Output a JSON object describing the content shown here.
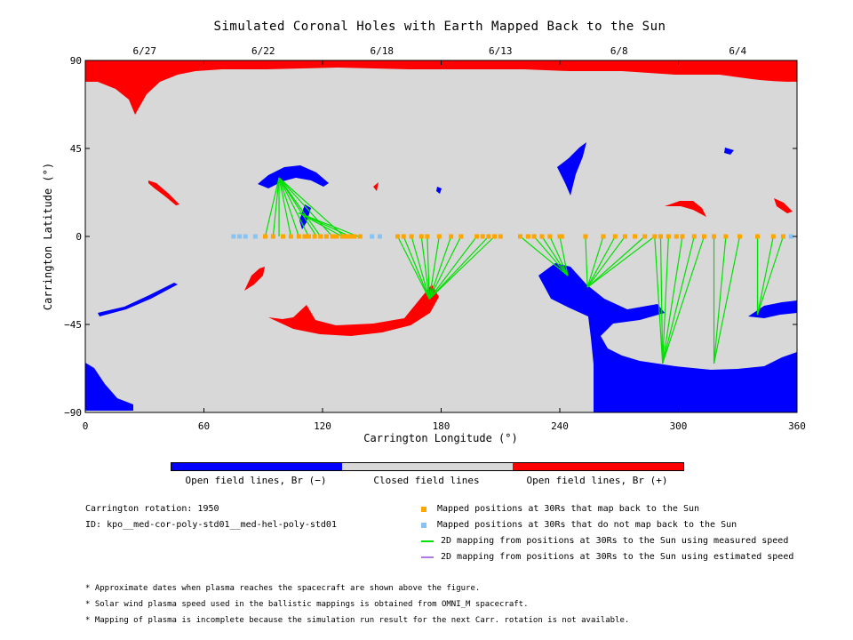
{
  "title": "Simulated Coronal Holes with Earth Mapped Back to the Sun",
  "chart_data": {
    "type": "scatter",
    "title": "Simulated Coronal Holes with Earth Mapped Back to the Sun",
    "xlabel": "Carrington Longitude (°)",
    "ylabel": "Carrington Latitude (°)",
    "xlim": [
      0,
      360
    ],
    "ylim": [
      -90,
      90
    ],
    "x_ticks": [
      "0",
      "60",
      "120",
      "180",
      "240",
      "300",
      "360"
    ],
    "y_ticks": [
      "90",
      "45",
      "0",
      "−45",
      "−90"
    ],
    "top_axis_dates": [
      {
        "label": "6/27",
        "lon": 30
      },
      {
        "label": "6/22",
        "lon": 90
      },
      {
        "label": "6/18",
        "lon": 150
      },
      {
        "label": "6/13",
        "lon": 210
      },
      {
        "label": "6/8",
        "lon": 270
      },
      {
        "label": "6/4",
        "lon": 330
      }
    ],
    "colors": {
      "closed": "#d8d8d8",
      "open_negative": "#0000ff",
      "open_positive": "#ff0000",
      "mapped": "#ffa500",
      "not_mapped": "#87c4f5",
      "measured_line": "#00e000",
      "estimated_line": "#b07ae0"
    },
    "unmapped_points_lon": [
      75,
      78,
      81,
      86,
      145,
      149,
      357
    ],
    "mapped_points_lon": [
      91,
      95,
      100,
      104,
      108,
      111,
      113,
      116,
      119,
      122,
      125,
      127,
      130,
      132,
      134,
      136,
      139,
      158,
      161,
      165,
      170,
      173,
      179,
      185,
      190,
      198,
      201,
      204,
      207,
      210,
      220,
      224,
      227,
      231,
      235,
      240,
      241,
      253,
      262,
      268,
      273,
      278,
      283,
      288,
      291,
      295,
      299,
      302,
      308,
      313,
      318,
      324,
      331,
      340,
      348,
      353
    ],
    "mapping_lines": [
      {
        "sun": [
          98,
          30
        ],
        "targets": [
          91,
          95,
          98,
          104,
          108,
          113,
          117,
          119,
          125,
          131
        ]
      },
      {
        "sun": [
          108,
          12
        ],
        "targets": [
          130,
          134,
          138
        ]
      },
      {
        "sun": [
          174,
          -32
        ],
        "targets": [
          158,
          161,
          165,
          170,
          173,
          179,
          185,
          190,
          198,
          204,
          207
        ]
      },
      {
        "sun": [
          244,
          -20
        ],
        "targets": [
          220,
          227,
          231,
          235,
          240
        ]
      },
      {
        "sun": [
          254,
          -26
        ],
        "targets": [
          253,
          262,
          268,
          273,
          283,
          288
        ]
      },
      {
        "sun": [
          292,
          -65
        ],
        "targets": [
          288,
          291,
          295,
          302,
          308,
          313
        ]
      },
      {
        "sun": [
          318,
          -65
        ],
        "targets": [
          318,
          324,
          331
        ]
      },
      {
        "sun": [
          340,
          -40
        ],
        "targets": [
          340,
          348,
          353
        ]
      }
    ]
  },
  "colorbar": {
    "labels": [
      "Open field lines, Br (−)",
      "Closed field lines",
      "Open field lines, Br (+)"
    ],
    "colors": [
      "#0000ff",
      "#d8d8d8",
      "#ff0000"
    ]
  },
  "info": {
    "rotation": "Carrington rotation: 1950",
    "id": "ID: kpo__med-cor-poly-std01__med-hel-poly-std01"
  },
  "legend": [
    {
      "text": "Mapped positions at 30Rs that map back to the Sun",
      "kind": "square",
      "color": "#ffa500"
    },
    {
      "text": "Mapped positions at 30Rs that do not map back to the Sun",
      "kind": "square",
      "color": "#87c4f5"
    },
    {
      "text": "2D mapping from positions at 30Rs to the Sun using measured speed",
      "kind": "line",
      "color": "#00e000"
    },
    {
      "text": "2D mapping from positions at 30Rs to the Sun using estimated speed",
      "kind": "line",
      "color": "#b07ae0"
    }
  ],
  "footnotes": [
    "* Approximate dates when plasma reaches the spacecraft are shown above the figure.",
    "* Solar wind plasma speed used in the ballistic mappings is obtained from OMNI_M spacecraft.",
    "* Mapping of plasma is incomplete because the simulation run result for the next Carr. rotation is not available."
  ]
}
